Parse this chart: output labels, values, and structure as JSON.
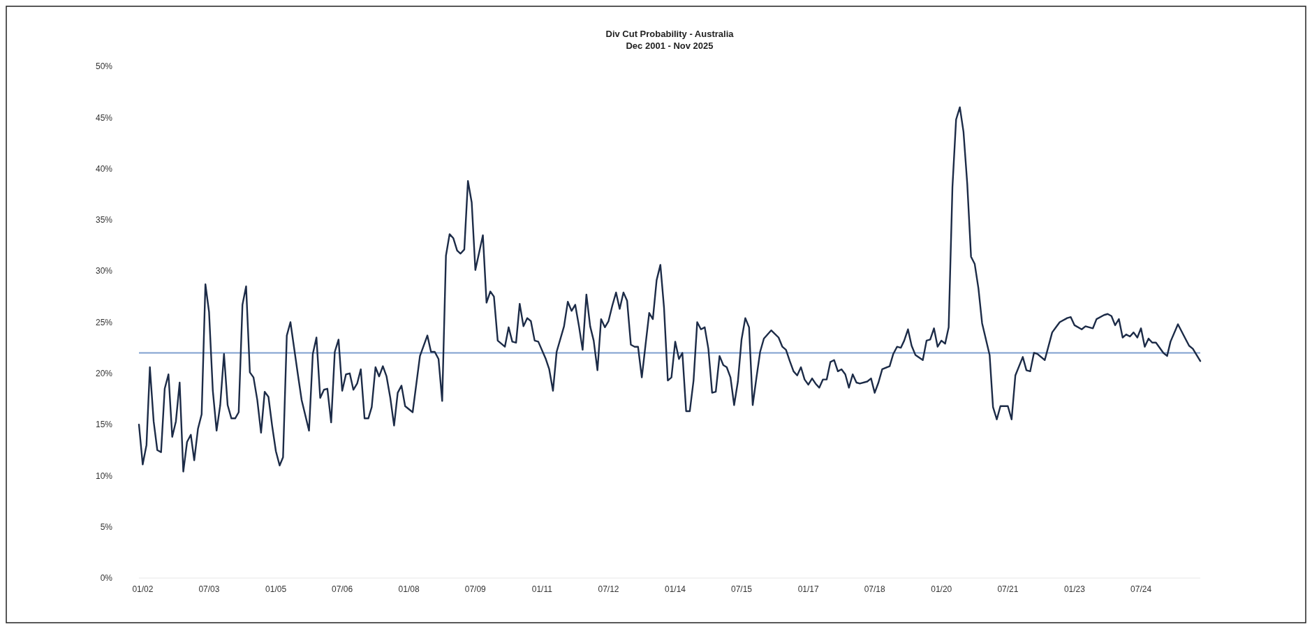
{
  "chart_data": {
    "type": "line",
    "title": "Div Cut Probability - Australia",
    "subtitle": "Dec 2001 - Nov 2025",
    "xlim": [
      "2001-12",
      "2025-11"
    ],
    "xticks": [
      {
        "value": "2002-01",
        "label": "01/02"
      },
      {
        "value": "2003-07",
        "label": "07/03"
      },
      {
        "value": "2005-01",
        "label": "01/05"
      },
      {
        "value": "2006-07",
        "label": "07/06"
      },
      {
        "value": "2008-01",
        "label": "01/08"
      },
      {
        "value": "2009-07",
        "label": "07/09"
      },
      {
        "value": "2011-01",
        "label": "01/11"
      },
      {
        "value": "2012-07",
        "label": "07/12"
      },
      {
        "value": "2014-01",
        "label": "01/14"
      },
      {
        "value": "2015-07",
        "label": "07/15"
      },
      {
        "value": "2017-01",
        "label": "01/17"
      },
      {
        "value": "2018-07",
        "label": "07/18"
      },
      {
        "value": "2020-01",
        "label": "01/20"
      },
      {
        "value": "2021-07",
        "label": "07/21"
      },
      {
        "value": "2023-01",
        "label": "01/23"
      },
      {
        "value": "2024-07",
        "label": "07/24"
      }
    ],
    "ylim": [
      0,
      50
    ],
    "yticks": [
      {
        "value": 0,
        "label": "0%"
      },
      {
        "value": 5,
        "label": "5%"
      },
      {
        "value": 10,
        "label": "10%"
      },
      {
        "value": 15,
        "label": "15%"
      },
      {
        "value": 20,
        "label": "20%"
      },
      {
        "value": 25,
        "label": "25%"
      },
      {
        "value": 30,
        "label": "30%"
      },
      {
        "value": 35,
        "label": "35%"
      },
      {
        "value": 40,
        "label": "40%"
      },
      {
        "value": 45,
        "label": "45%"
      },
      {
        "value": 50,
        "label": "50%"
      }
    ],
    "ref_lines": [
      {
        "axis": "y",
        "value": 22.0,
        "color": "#7f9fcf"
      }
    ],
    "series": [
      {
        "color": "#1c2b47",
        "x": [
          "2001-12",
          "2002-01",
          "2002-02",
          "2002-03",
          "2002-04",
          "2002-05",
          "2002-06",
          "2002-07",
          "2002-08",
          "2002-09",
          "2002-10",
          "2002-11",
          "2002-12",
          "2003-01",
          "2003-02",
          "2003-03",
          "2003-04",
          "2003-05",
          "2003-06",
          "2003-07",
          "2003-08",
          "2003-09",
          "2003-10",
          "2003-11",
          "2003-12",
          "2004-01",
          "2004-02",
          "2004-03",
          "2004-04",
          "2004-05",
          "2004-06",
          "2004-07",
          "2004-08",
          "2004-09",
          "2004-10",
          "2004-11",
          "2004-12",
          "2005-01",
          "2005-02",
          "2005-03",
          "2005-04",
          "2005-05",
          "2005-07",
          "2005-08",
          "2005-10",
          "2005-11",
          "2005-12",
          "2006-01",
          "2006-02",
          "2006-03",
          "2006-04",
          "2006-05",
          "2006-06",
          "2006-07",
          "2006-08",
          "2006-09",
          "2006-10",
          "2006-11",
          "2006-12",
          "2007-01",
          "2007-02",
          "2007-03",
          "2007-04",
          "2007-05",
          "2007-06",
          "2007-07",
          "2007-08",
          "2007-09",
          "2007-10",
          "2007-11",
          "2007-12",
          "2008-02",
          "2008-04",
          "2008-06",
          "2008-07",
          "2008-08",
          "2008-09",
          "2008-10",
          "2008-11",
          "2008-12",
          "2009-01",
          "2009-02",
          "2009-03",
          "2009-04",
          "2009-05",
          "2009-06",
          "2009-07",
          "2009-09",
          "2009-10",
          "2009-11",
          "2009-12",
          "2010-01",
          "2010-03",
          "2010-04",
          "2010-05",
          "2010-06",
          "2010-07",
          "2010-08",
          "2010-09",
          "2010-10",
          "2010-11",
          "2010-12",
          "2011-02",
          "2011-03",
          "2011-04",
          "2011-05",
          "2011-07",
          "2011-08",
          "2011-09",
          "2011-10",
          "2011-11",
          "2011-12",
          "2012-01",
          "2012-02",
          "2012-03",
          "2012-04",
          "2012-05",
          "2012-06",
          "2012-07",
          "2012-08",
          "2012-09",
          "2012-10",
          "2012-11",
          "2012-12",
          "2013-01",
          "2013-02",
          "2013-03",
          "2013-04",
          "2013-05",
          "2013-06",
          "2013-07",
          "2013-08",
          "2013-09",
          "2013-10",
          "2013-11",
          "2013-12",
          "2014-01",
          "2014-02",
          "2014-03",
          "2014-04",
          "2014-05",
          "2014-06",
          "2014-07",
          "2014-08",
          "2014-09",
          "2014-10",
          "2014-11",
          "2014-12",
          "2015-01",
          "2015-02",
          "2015-03",
          "2015-04",
          "2015-05",
          "2015-06",
          "2015-07",
          "2015-08",
          "2015-09",
          "2015-10",
          "2015-11",
          "2015-12",
          "2016-01",
          "2016-03",
          "2016-05",
          "2016-06",
          "2016-07",
          "2016-08",
          "2016-09",
          "2016-10",
          "2016-11",
          "2016-12",
          "2017-01",
          "2017-02",
          "2017-03",
          "2017-04",
          "2017-05",
          "2017-06",
          "2017-07",
          "2017-08",
          "2017-09",
          "2017-10",
          "2017-11",
          "2017-12",
          "2018-01",
          "2018-02",
          "2018-03",
          "2018-05",
          "2018-06",
          "2018-07",
          "2018-08",
          "2018-09",
          "2018-11",
          "2018-12",
          "2019-01",
          "2019-02",
          "2019-03",
          "2019-04",
          "2019-05",
          "2019-06",
          "2019-08",
          "2019-09",
          "2019-10",
          "2019-11",
          "2019-12",
          "2020-01",
          "2020-02",
          "2020-03",
          "2020-04",
          "2020-05",
          "2020-06",
          "2020-07",
          "2020-08",
          "2020-09",
          "2020-10",
          "2020-11",
          "2020-12",
          "2021-02",
          "2021-03",
          "2021-04",
          "2021-05",
          "2021-07",
          "2021-08",
          "2021-09",
          "2021-11",
          "2021-12",
          "2022-01",
          "2022-02",
          "2022-03",
          "2022-05",
          "2022-07",
          "2022-08",
          "2022-09",
          "2022-11",
          "2022-12",
          "2023-01",
          "2023-03",
          "2023-04",
          "2023-06",
          "2023-07",
          "2023-09",
          "2023-10",
          "2023-11",
          "2023-12",
          "2024-01",
          "2024-02",
          "2024-03",
          "2024-04",
          "2024-05",
          "2024-06",
          "2024-07",
          "2024-08",
          "2024-09",
          "2024-10",
          "2024-11",
          "2025-01",
          "2025-02",
          "2025-03",
          "2025-05",
          "2025-07",
          "2025-08",
          "2025-09",
          "2025-11"
        ],
        "values": [
          15.0,
          11.1,
          13.0,
          20.6,
          15.3,
          12.5,
          12.3,
          18.5,
          19.9,
          13.8,
          15.3,
          19.1,
          10.4,
          13.3,
          14.0,
          11.5,
          14.6,
          16.0,
          28.7,
          26.0,
          18.3,
          14.4,
          16.9,
          21.9,
          16.9,
          15.6,
          15.6,
          16.2,
          26.7,
          28.5,
          20.1,
          19.6,
          17.4,
          14.2,
          18.2,
          17.7,
          14.9,
          12.4,
          11.0,
          11.8,
          23.7,
          25.0,
          19.9,
          17.4,
          14.4,
          21.9,
          23.5,
          17.6,
          18.4,
          18.5,
          15.2,
          22.1,
          23.3,
          18.3,
          19.9,
          20.0,
          18.4,
          19.0,
          20.4,
          15.6,
          15.6,
          16.7,
          20.6,
          19.7,
          20.7,
          19.7,
          17.6,
          14.9,
          18.1,
          18.8,
          16.8,
          16.2,
          21.7,
          23.7,
          22.1,
          22.1,
          21.4,
          17.3,
          31.5,
          33.6,
          33.2,
          32.0,
          31.7,
          32.1,
          38.8,
          36.7,
          30.1,
          33.5,
          26.9,
          28.0,
          27.5,
          23.2,
          22.6,
          24.5,
          23.1,
          23.0,
          26.8,
          24.6,
          25.4,
          25.1,
          23.2,
          23.1,
          21.4,
          20.4,
          18.3,
          22.1,
          24.6,
          27.0,
          26.1,
          26.7,
          24.6,
          22.3,
          27.7,
          24.6,
          23.2,
          20.3,
          25.3,
          24.5,
          25.1,
          26.6,
          27.9,
          26.3,
          27.9,
          27.1,
          22.8,
          22.6,
          22.6,
          19.6,
          22.7,
          25.9,
          25.3,
          29.1,
          30.6,
          26.4,
          19.3,
          19.6,
          23.1,
          21.4,
          22.0,
          16.3,
          16.3,
          19.3,
          25.0,
          24.3,
          24.5,
          22.4,
          18.1,
          18.2,
          21.7,
          20.8,
          20.6,
          19.6,
          16.9,
          19.2,
          23.3,
          25.4,
          24.5,
          16.9,
          19.6,
          22.1,
          23.4,
          24.2,
          23.5,
          22.6,
          22.3,
          21.2,
          20.2,
          19.8,
          20.6,
          19.4,
          18.9,
          19.5,
          19.0,
          18.6,
          19.4,
          19.4,
          21.1,
          21.3,
          20.2,
          20.4,
          19.9,
          18.6,
          19.9,
          19.1,
          19.0,
          19.2,
          19.5,
          18.1,
          19.1,
          20.4,
          20.7,
          21.9,
          22.6,
          22.5,
          23.2,
          24.3,
          22.7,
          21.8,
          21.3,
          23.2,
          23.3,
          24.4,
          22.6,
          23.2,
          22.9,
          24.5,
          38.2,
          44.8,
          46.0,
          43.6,
          38.5,
          31.4,
          30.7,
          28.3,
          24.9,
          21.8,
          16.7,
          15.5,
          16.8,
          16.8,
          15.5,
          19.8,
          21.6,
          20.3,
          20.2,
          22.0,
          21.9,
          21.3,
          24.0,
          24.5,
          25.0,
          25.4,
          25.5,
          24.7,
          24.3,
          24.6,
          24.4,
          25.3,
          25.7,
          25.8,
          25.6,
          24.7,
          25.3,
          23.5,
          23.8,
          23.6,
          24.0,
          23.5,
          24.4,
          22.6,
          23.4,
          23.0,
          23.0,
          22.0,
          21.7,
          23.1,
          24.8,
          23.4,
          22.7,
          22.4,
          21.2
        ]
      }
    ]
  }
}
